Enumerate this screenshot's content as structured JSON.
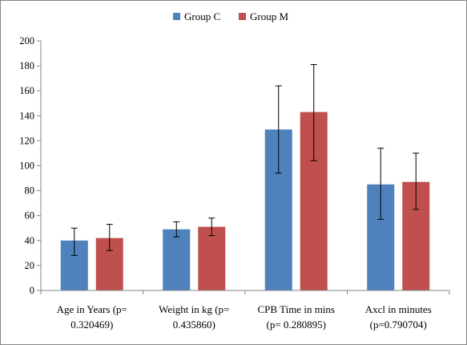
{
  "chart_data": {
    "type": "bar",
    "title": "",
    "xlabel": "",
    "ylabel": "",
    "ylim": [
      0,
      200
    ],
    "yticks": [
      0,
      20,
      40,
      60,
      80,
      100,
      120,
      140,
      160,
      180,
      200
    ],
    "grid": false,
    "legend_position": "top-center",
    "categories": [
      [
        "Age in Years (p=",
        "0.320469)"
      ],
      [
        "Weight in kg (p=",
        "0.435860)"
      ],
      [
        "CPB Time in mins",
        "(p= 0.280895)"
      ],
      [
        "Axcl  in minutes",
        "(p=0.790704)"
      ]
    ],
    "series": [
      {
        "name": "Group C",
        "color": "#4F81BD",
        "values": [
          40,
          49,
          129,
          85
        ],
        "error_low": [
          28,
          43,
          94,
          57
        ],
        "error_high": [
          50,
          55,
          164,
          114
        ]
      },
      {
        "name": "Group M",
        "color": "#C0504D",
        "values": [
          42,
          51,
          143,
          87
        ],
        "error_low": [
          32,
          44,
          104,
          65
        ],
        "error_high": [
          53,
          58,
          181,
          110
        ]
      }
    ]
  }
}
